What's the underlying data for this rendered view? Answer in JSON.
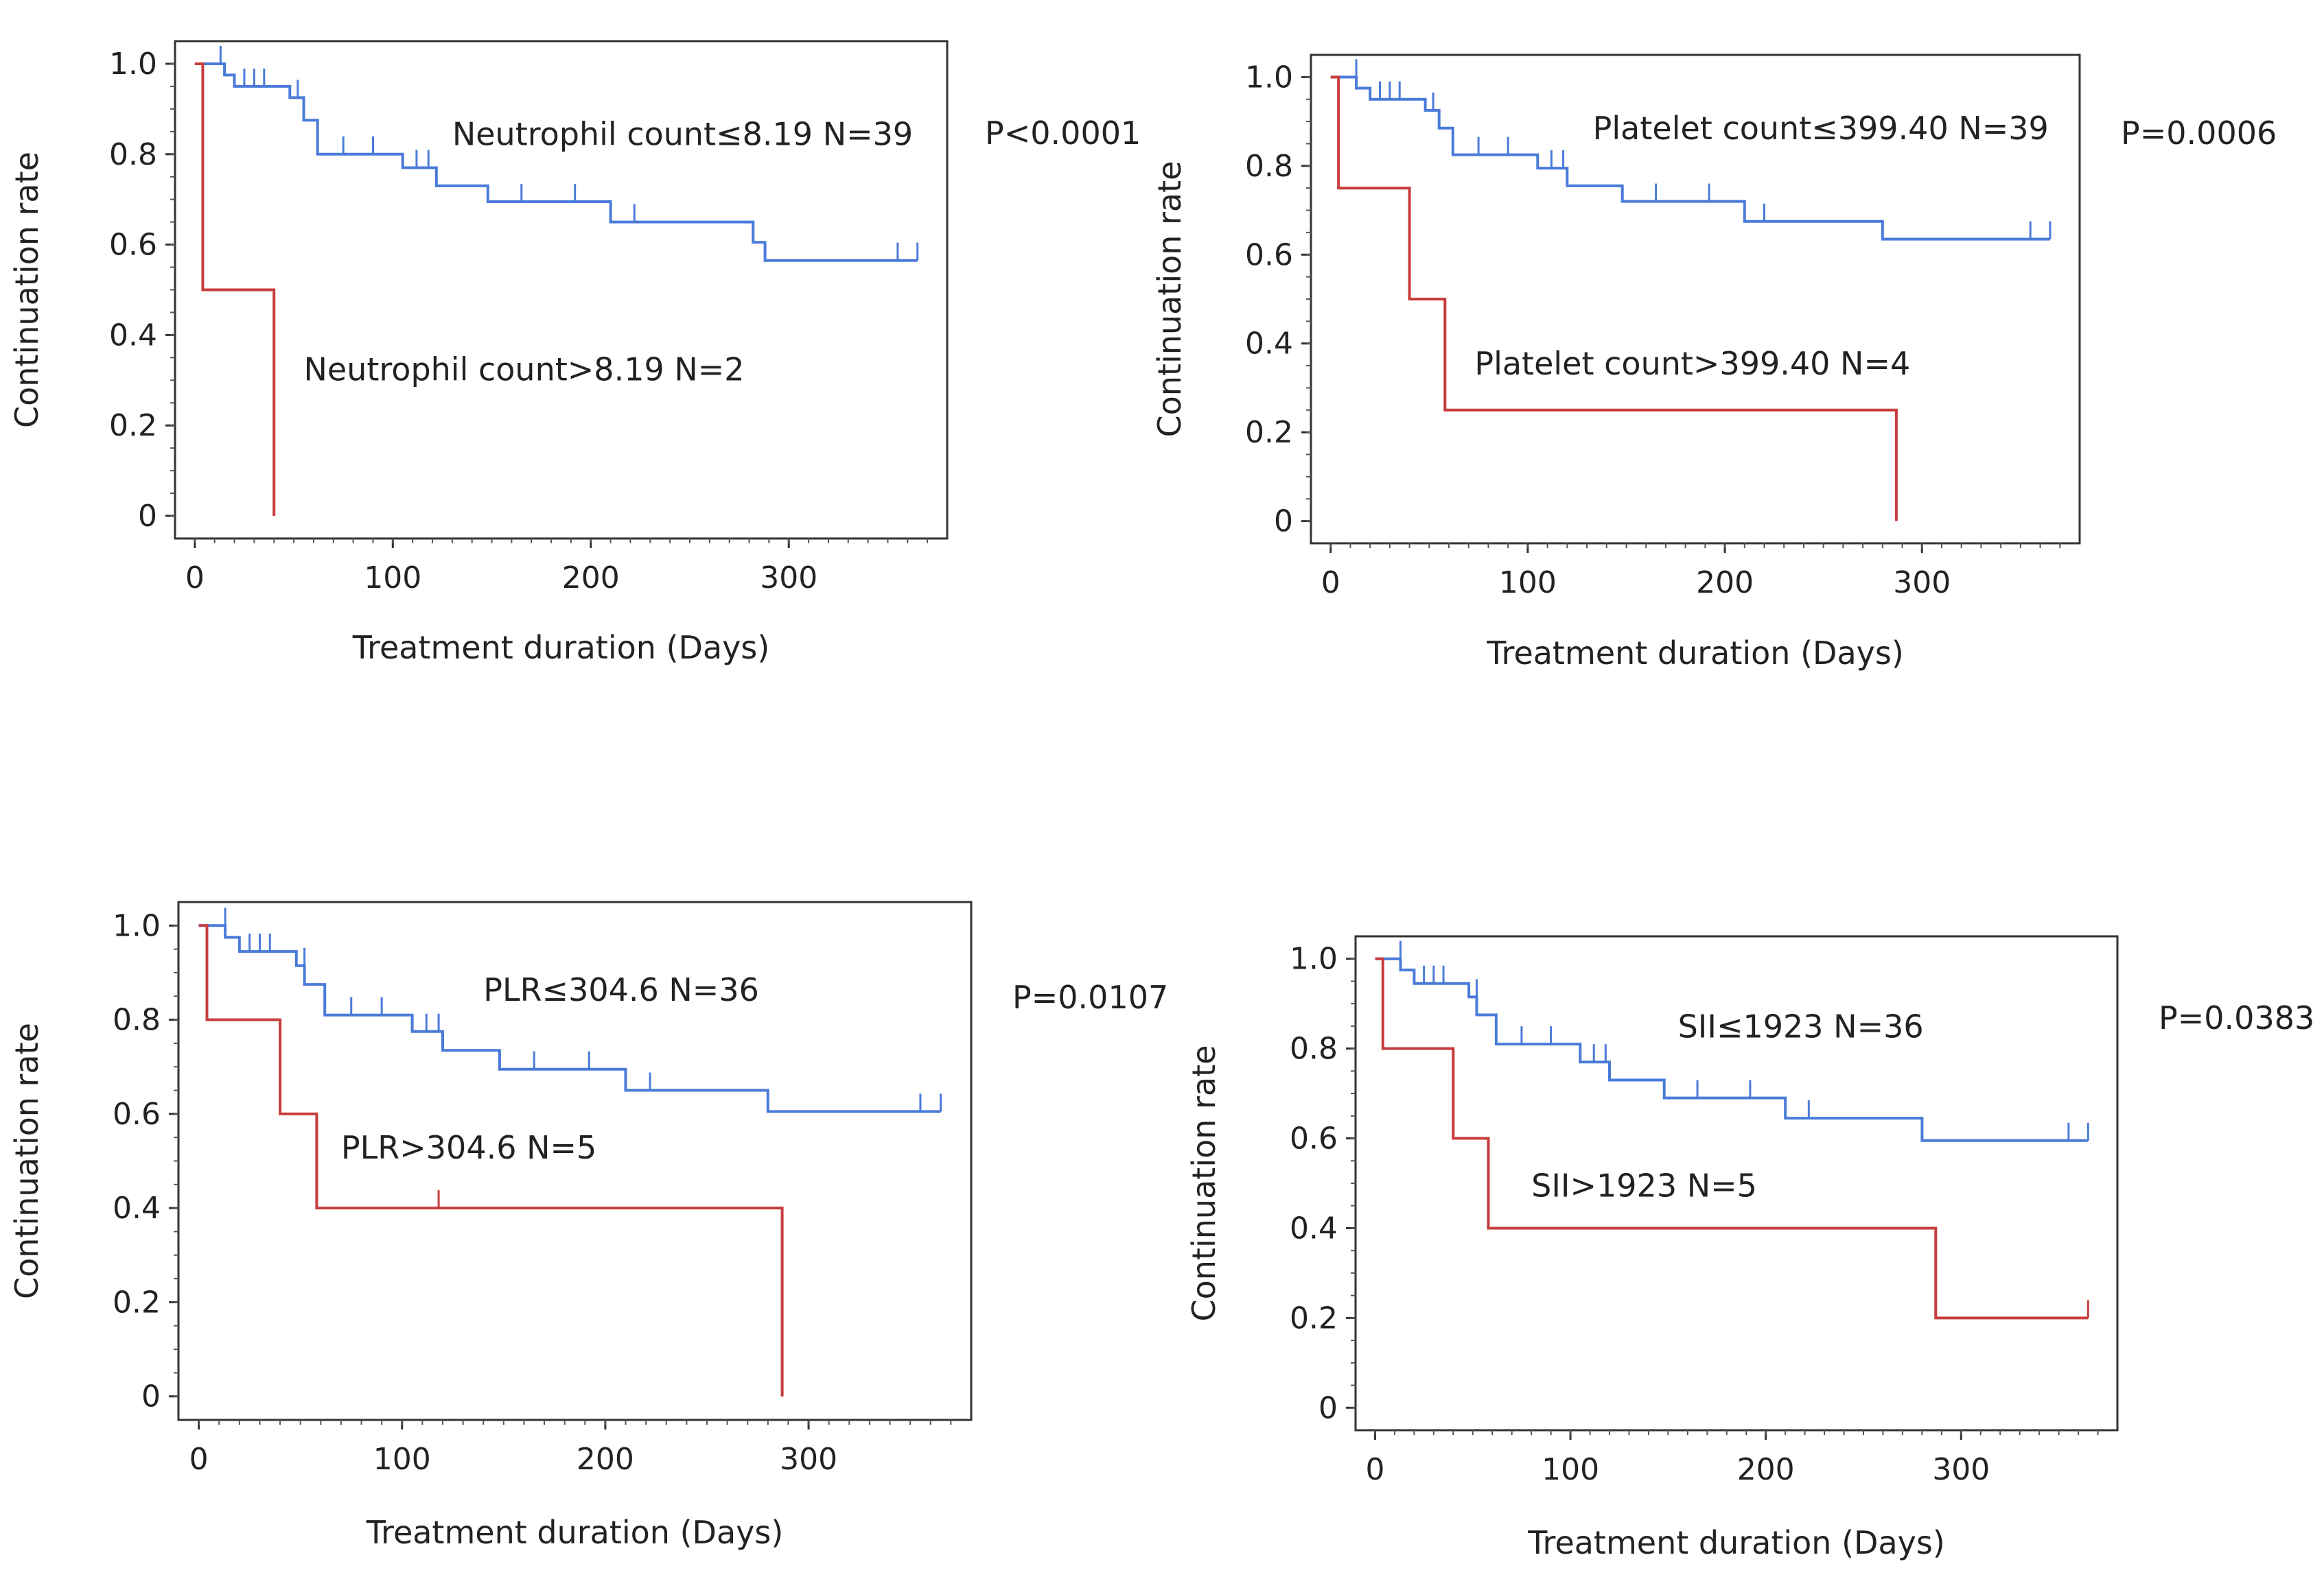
{
  "chart_data": [
    {
      "type": "line",
      "subtype": "kaplan-meier",
      "position": "top-left",
      "xlabel": "Treatment duration (Days)",
      "ylabel": "Continuation rate",
      "xlim": [
        -10,
        380
      ],
      "ylim": [
        -0.05,
        1.05
      ],
      "xticks": [
        0,
        100,
        200,
        300
      ],
      "xtick_labels": [
        "0",
        "100",
        "200",
        "300"
      ],
      "yticks": [
        0,
        0.2,
        0.4,
        0.6,
        0.8,
        1.0
      ],
      "ytick_labels": [
        "0",
        "0.2",
        "0.4",
        "0.6",
        "0.8",
        "1.0"
      ],
      "p_value": "P<0.0001",
      "series": [
        {
          "name": "Neutrophil count≤8.19 N=39",
          "color": "#4a7bd9",
          "label_at": [
            130,
            0.82
          ],
          "steps": [
            [
              0,
              1.0
            ],
            [
              15,
              1.0
            ],
            [
              15,
              0.975
            ],
            [
              20,
              0.975
            ],
            [
              20,
              0.95
            ],
            [
              48,
              0.95
            ],
            [
              48,
              0.925
            ],
            [
              55,
              0.925
            ],
            [
              55,
              0.875
            ],
            [
              62,
              0.875
            ],
            [
              62,
              0.8
            ],
            [
              105,
              0.8
            ],
            [
              105,
              0.77
            ],
            [
              122,
              0.77
            ],
            [
              122,
              0.73
            ],
            [
              148,
              0.73
            ],
            [
              148,
              0.695
            ],
            [
              210,
              0.695
            ],
            [
              210,
              0.65
            ],
            [
              282,
              0.65
            ],
            [
              282,
              0.605
            ],
            [
              288,
              0.605
            ],
            [
              288,
              0.565
            ],
            [
              365,
              0.565
            ]
          ],
          "censor": [
            [
              13,
              1.0
            ],
            [
              25,
              0.95
            ],
            [
              30,
              0.95
            ],
            [
              35,
              0.95
            ],
            [
              52,
              0.925
            ],
            [
              75,
              0.8
            ],
            [
              90,
              0.8
            ],
            [
              112,
              0.77
            ],
            [
              118,
              0.77
            ],
            [
              165,
              0.695
            ],
            [
              192,
              0.695
            ],
            [
              222,
              0.65
            ],
            [
              355,
              0.565
            ],
            [
              365,
              0.565
            ]
          ]
        },
        {
          "name": "Neutrophil count>8.19 N=2",
          "color": "#c83c3c",
          "label_at": [
            55,
            0.3
          ],
          "steps": [
            [
              0,
              1.0
            ],
            [
              4,
              1.0
            ],
            [
              4,
              0.5
            ],
            [
              40,
              0.5
            ],
            [
              40,
              0.0
            ]
          ],
          "censor": []
        }
      ]
    },
    {
      "type": "line",
      "subtype": "kaplan-meier",
      "position": "top-right",
      "xlabel": "Treatment duration (Days)",
      "ylabel": "Continuation rate",
      "xlim": [
        -10,
        380
      ],
      "ylim": [
        -0.05,
        1.05
      ],
      "xticks": [
        0,
        100,
        200,
        300
      ],
      "xtick_labels": [
        "0",
        "100",
        "200",
        "300"
      ],
      "yticks": [
        0,
        0.2,
        0.4,
        0.6,
        0.8,
        1.0
      ],
      "ytick_labels": [
        "0",
        "0.2",
        "0.4",
        "0.6",
        "0.8",
        "1.0"
      ],
      "p_value": "P=0.0006",
      "series": [
        {
          "name": "Platelet count≤399.40 N=39",
          "color": "#4a7bd9",
          "label_at": [
            133,
            0.86
          ],
          "steps": [
            [
              0,
              1.0
            ],
            [
              13,
              1.0
            ],
            [
              13,
              0.975
            ],
            [
              20,
              0.975
            ],
            [
              20,
              0.95
            ],
            [
              48,
              0.95
            ],
            [
              48,
              0.925
            ],
            [
              55,
              0.925
            ],
            [
              55,
              0.885
            ],
            [
              62,
              0.885
            ],
            [
              62,
              0.825
            ],
            [
              105,
              0.825
            ],
            [
              105,
              0.795
            ],
            [
              120,
              0.795
            ],
            [
              120,
              0.755
            ],
            [
              148,
              0.755
            ],
            [
              148,
              0.72
            ],
            [
              210,
              0.72
            ],
            [
              210,
              0.675
            ],
            [
              280,
              0.675
            ],
            [
              280,
              0.635
            ],
            [
              365,
              0.635
            ]
          ],
          "censor": [
            [
              13,
              1.0
            ],
            [
              25,
              0.95
            ],
            [
              30,
              0.95
            ],
            [
              35,
              0.95
            ],
            [
              52,
              0.925
            ],
            [
              75,
              0.825
            ],
            [
              90,
              0.825
            ],
            [
              112,
              0.795
            ],
            [
              118,
              0.795
            ],
            [
              165,
              0.72
            ],
            [
              192,
              0.72
            ],
            [
              220,
              0.675
            ],
            [
              355,
              0.635
            ],
            [
              365,
              0.635
            ]
          ]
        },
        {
          "name": "Platelet count>399.40 N=4",
          "color": "#c83c3c",
          "label_at": [
            73,
            0.33
          ],
          "steps": [
            [
              0,
              1.0
            ],
            [
              4,
              1.0
            ],
            [
              4,
              0.75
            ],
            [
              40,
              0.75
            ],
            [
              40,
              0.5
            ],
            [
              58,
              0.5
            ],
            [
              58,
              0.25
            ],
            [
              287,
              0.25
            ],
            [
              287,
              0.0
            ]
          ],
          "censor": []
        }
      ]
    },
    {
      "type": "line",
      "subtype": "kaplan-meier",
      "position": "bottom-left",
      "xlabel": "Treatment duration (Days)",
      "ylabel": "Continuation rate",
      "xlim": [
        -10,
        380
      ],
      "ylim": [
        -0.05,
        1.05
      ],
      "xticks": [
        0,
        100,
        200,
        300
      ],
      "xtick_labels": [
        "0",
        "100",
        "200",
        "300"
      ],
      "yticks": [
        0,
        0.2,
        0.4,
        0.6,
        0.8,
        1.0
      ],
      "ytick_labels": [
        "0",
        "0.2",
        "0.4",
        "0.6",
        "0.8",
        "1.0"
      ],
      "p_value": "P=0.0107",
      "series": [
        {
          "name": "PLR≤304.6 N=36",
          "color": "#4a7bd9",
          "label_at": [
            140,
            0.84
          ],
          "steps": [
            [
              0,
              1.0
            ],
            [
              13,
              1.0
            ],
            [
              13,
              0.975
            ],
            [
              20,
              0.975
            ],
            [
              20,
              0.945
            ],
            [
              48,
              0.945
            ],
            [
              48,
              0.915
            ],
            [
              52,
              0.915
            ],
            [
              52,
              0.875
            ],
            [
              62,
              0.875
            ],
            [
              62,
              0.81
            ],
            [
              105,
              0.81
            ],
            [
              105,
              0.775
            ],
            [
              120,
              0.775
            ],
            [
              120,
              0.735
            ],
            [
              148,
              0.735
            ],
            [
              148,
              0.695
            ],
            [
              210,
              0.695
            ],
            [
              210,
              0.65
            ],
            [
              280,
              0.65
            ],
            [
              280,
              0.605
            ],
            [
              365,
              0.605
            ]
          ],
          "censor": [
            [
              13,
              1.0
            ],
            [
              25,
              0.945
            ],
            [
              30,
              0.945
            ],
            [
              35,
              0.945
            ],
            [
              52,
              0.915
            ],
            [
              75,
              0.81
            ],
            [
              90,
              0.81
            ],
            [
              112,
              0.775
            ],
            [
              118,
              0.775
            ],
            [
              165,
              0.695
            ],
            [
              192,
              0.695
            ],
            [
              222,
              0.65
            ],
            [
              355,
              0.605
            ],
            [
              365,
              0.605
            ]
          ]
        },
        {
          "name": "PLR>304.6 N=5",
          "color": "#c83c3c",
          "label_at": [
            70,
            0.505
          ],
          "steps": [
            [
              0,
              1.0
            ],
            [
              4,
              1.0
            ],
            [
              4,
              0.8
            ],
            [
              40,
              0.8
            ],
            [
              40,
              0.6
            ],
            [
              58,
              0.6
            ],
            [
              58,
              0.4
            ],
            [
              287,
              0.4
            ],
            [
              287,
              0.0
            ]
          ],
          "censor": [
            [
              118,
              0.4
            ]
          ]
        }
      ]
    },
    {
      "type": "line",
      "subtype": "kaplan-meier",
      "position": "bottom-right",
      "xlabel": "Treatment duration (Days)",
      "ylabel": "Continuation rate",
      "xlim": [
        -10,
        380
      ],
      "ylim": [
        -0.05,
        1.05
      ],
      "xticks": [
        0,
        100,
        200,
        300
      ],
      "xtick_labels": [
        "0",
        "100",
        "200",
        "300"
      ],
      "yticks": [
        0,
        0.2,
        0.4,
        0.6,
        0.8,
        1.0
      ],
      "ytick_labels": [
        "0",
        "0.2",
        "0.4",
        "0.6",
        "0.8",
        "1.0"
      ],
      "p_value": "P=0.0383",
      "series": [
        {
          "name": "SII≤1923 N=36",
          "color": "#4a7bd9",
          "label_at": [
            155,
            0.825
          ],
          "steps": [
            [
              0,
              1.0
            ],
            [
              13,
              1.0
            ],
            [
              13,
              0.975
            ],
            [
              20,
              0.975
            ],
            [
              20,
              0.945
            ],
            [
              48,
              0.945
            ],
            [
              48,
              0.915
            ],
            [
              52,
              0.915
            ],
            [
              52,
              0.875
            ],
            [
              62,
              0.875
            ],
            [
              62,
              0.81
            ],
            [
              105,
              0.81
            ],
            [
              105,
              0.77
            ],
            [
              120,
              0.77
            ],
            [
              120,
              0.73
            ],
            [
              148,
              0.73
            ],
            [
              148,
              0.69
            ],
            [
              210,
              0.69
            ],
            [
              210,
              0.645
            ],
            [
              280,
              0.645
            ],
            [
              280,
              0.595
            ],
            [
              365,
              0.595
            ]
          ],
          "censor": [
            [
              13,
              1.0
            ],
            [
              25,
              0.945
            ],
            [
              30,
              0.945
            ],
            [
              35,
              0.945
            ],
            [
              52,
              0.915
            ],
            [
              75,
              0.81
            ],
            [
              90,
              0.81
            ],
            [
              112,
              0.77
            ],
            [
              118,
              0.77
            ],
            [
              165,
              0.69
            ],
            [
              192,
              0.69
            ],
            [
              222,
              0.645
            ],
            [
              355,
              0.595
            ],
            [
              365,
              0.595
            ]
          ]
        },
        {
          "name": "SII>1923 N=5",
          "color": "#c83c3c",
          "label_at": [
            80,
            0.47
          ],
          "steps": [
            [
              0,
              1.0
            ],
            [
              4,
              1.0
            ],
            [
              4,
              0.8
            ],
            [
              40,
              0.8
            ],
            [
              40,
              0.6
            ],
            [
              58,
              0.6
            ],
            [
              58,
              0.4
            ],
            [
              287,
              0.4
            ],
            [
              287,
              0.2
            ],
            [
              365,
              0.2
            ]
          ],
          "censor": [
            [
              365,
              0.2
            ]
          ]
        }
      ]
    }
  ]
}
